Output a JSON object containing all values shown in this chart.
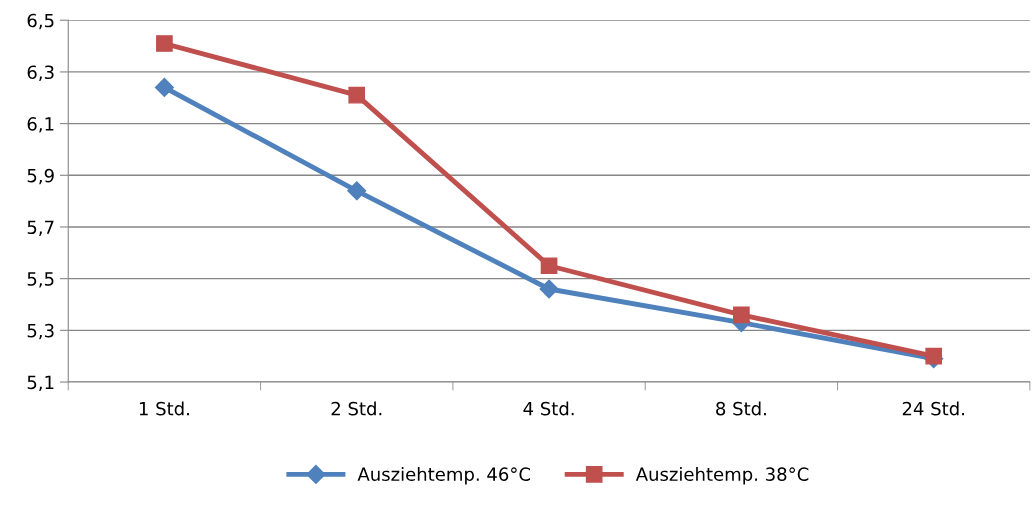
{
  "chart_data": {
    "type": "line",
    "categories": [
      "1 Std.",
      "2 Std.",
      "4 Std.",
      "8 Std.",
      "24 Std."
    ],
    "series": [
      {
        "name": "Ausziehtemp. 46°C",
        "color": "#4f81bd",
        "marker": "diamond",
        "values": [
          6.24,
          5.84,
          5.46,
          5.33,
          5.19
        ]
      },
      {
        "name": "Ausziehtemp. 38°C",
        "color": "#c0504d",
        "marker": "square",
        "values": [
          6.41,
          6.21,
          5.55,
          5.36,
          5.2
        ]
      }
    ],
    "ylim": [
      5.1,
      6.5
    ],
    "yticks": [
      {
        "value": 5.1,
        "label": "5,1"
      },
      {
        "value": 5.3,
        "label": "5,3"
      },
      {
        "value": 5.5,
        "label": "5,5"
      },
      {
        "value": 5.7,
        "label": "5,7"
      },
      {
        "value": 5.9,
        "label": "5,9"
      },
      {
        "value": 6.1,
        "label": "6,1"
      },
      {
        "value": 6.3,
        "label": "6,3"
      },
      {
        "value": 6.5,
        "label": "6,5"
      }
    ],
    "grid": "y",
    "legend": "bottom",
    "line_style": "solid"
  }
}
